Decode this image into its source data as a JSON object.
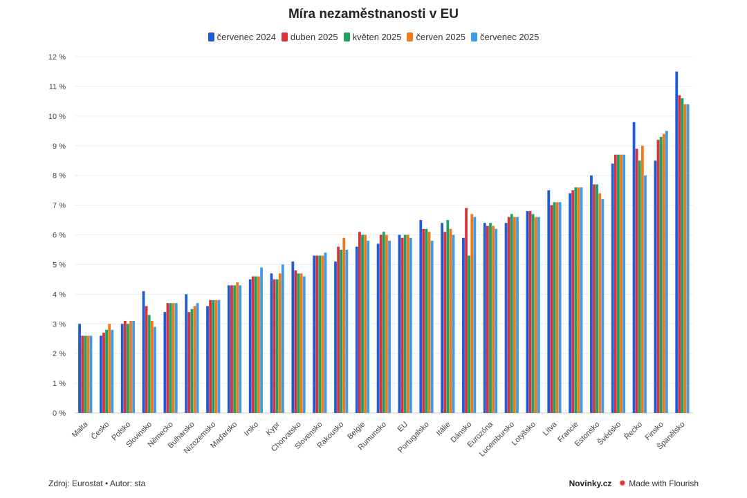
{
  "footer": {
    "source": "Zdroj: Eurostat • Autor: sta",
    "brand": "Novinky.cz",
    "made_with": "Made with Flourish",
    "flourish_icon": "flourish-logo-icon"
  },
  "chart_data": {
    "type": "bar",
    "title": "Míra nezaměstnanosti v EU",
    "xlabel": "",
    "ylabel": "",
    "ylim": [
      0,
      12
    ],
    "yticks": [
      0,
      1,
      2,
      3,
      4,
      5,
      6,
      7,
      8,
      9,
      10,
      11,
      12
    ],
    "ytick_suffix": " %",
    "grid": true,
    "legend_position": "top-center",
    "categories": [
      "Malta",
      "Česko",
      "Polsko",
      "Slovinsko",
      "Německo",
      "Bulharsko",
      "Nizozemsko",
      "Maďarsko",
      "Irsko",
      "Kypr",
      "Chorvatsko",
      "Slovensko",
      "Rakousko",
      "Belgie",
      "Rumunsko",
      "EU",
      "Portugalsko",
      "Itálie",
      "Dánsko",
      "Eurozóna",
      "Lucembursko",
      "Lotyšsko",
      "Litva",
      "Francie",
      "Estonsko",
      "Švédsko",
      "Řecko",
      "Finsko",
      "Španělsko"
    ],
    "series": [
      {
        "name": "červenec 2024",
        "color": "#1f5bd6",
        "values": [
          3.0,
          2.6,
          3.0,
          4.1,
          3.4,
          4.0,
          3.6,
          4.3,
          4.5,
          4.7,
          5.1,
          5.3,
          5.1,
          5.6,
          5.7,
          6.0,
          6.5,
          6.4,
          5.9,
          6.4,
          6.4,
          6.8,
          7.5,
          7.4,
          8.0,
          8.4,
          9.8,
          8.5,
          11.5
        ]
      },
      {
        "name": "duben 2025",
        "color": "#d8323c",
        "values": [
          2.6,
          2.7,
          3.1,
          3.6,
          3.7,
          3.4,
          3.8,
          4.3,
          4.6,
          4.5,
          4.8,
          5.3,
          5.6,
          6.1,
          6.0,
          5.9,
          6.2,
          6.1,
          6.9,
          6.3,
          6.6,
          6.8,
          7.0,
          7.5,
          7.7,
          8.7,
          8.9,
          9.2,
          10.7
        ]
      },
      {
        "name": "květen 2025",
        "color": "#1ba363",
        "values": [
          2.6,
          2.8,
          3.0,
          3.3,
          3.7,
          3.5,
          3.8,
          4.3,
          4.6,
          4.5,
          4.7,
          5.3,
          5.5,
          6.0,
          6.1,
          6.0,
          6.2,
          6.5,
          5.3,
          6.4,
          6.7,
          6.7,
          7.1,
          7.6,
          7.7,
          8.7,
          8.5,
          9.3,
          10.6
        ]
      },
      {
        "name": "červen 2025",
        "color": "#f07a1a",
        "values": [
          2.6,
          3.0,
          3.1,
          3.1,
          3.7,
          3.6,
          3.8,
          4.4,
          4.6,
          4.7,
          4.7,
          5.3,
          5.9,
          6.0,
          6.0,
          6.0,
          6.1,
          6.2,
          6.7,
          6.3,
          6.6,
          6.6,
          7.1,
          7.6,
          7.4,
          8.7,
          9.0,
          9.4,
          10.4
        ]
      },
      {
        "name": "červenec 2025",
        "color": "#3d9be9",
        "values": [
          2.6,
          2.8,
          3.1,
          2.9,
          3.7,
          3.7,
          3.8,
          4.3,
          4.9,
          5.0,
          4.6,
          5.4,
          5.5,
          5.8,
          5.8,
          5.9,
          5.8,
          6.0,
          6.6,
          6.2,
          6.6,
          6.6,
          7.1,
          7.6,
          7.2,
          8.7,
          8.0,
          9.5,
          10.4
        ]
      }
    ]
  }
}
